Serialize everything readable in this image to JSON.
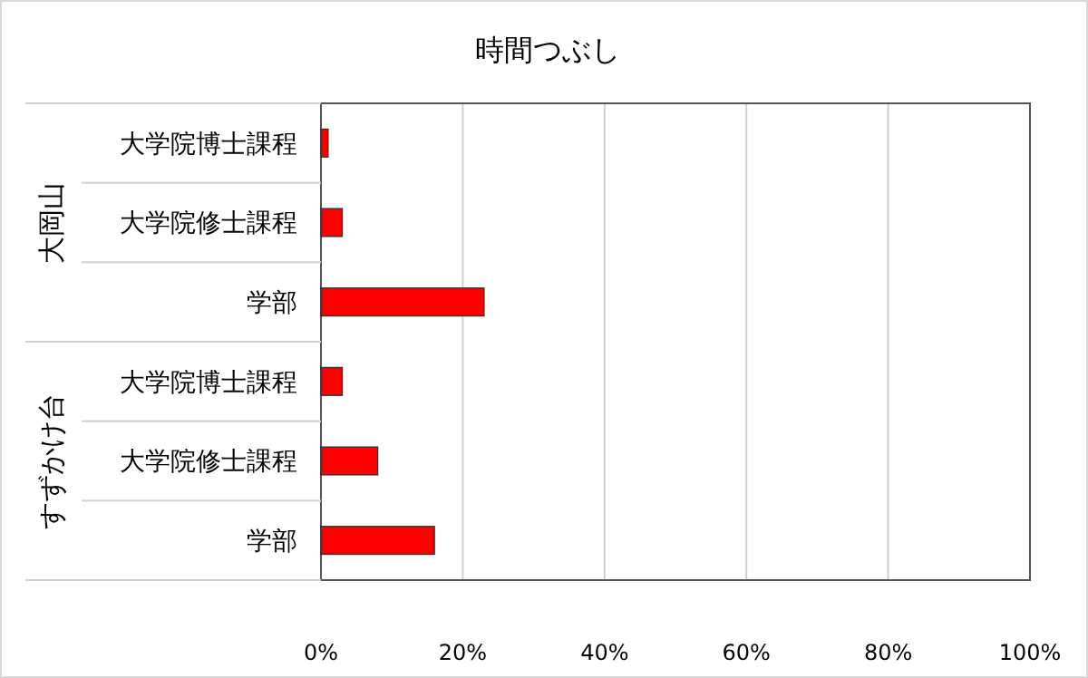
{
  "chart_data": {
    "type": "bar",
    "orientation": "horizontal",
    "title": "時間つぶし",
    "categories": [
      "大学院博士課程",
      "大学院修士課程",
      "学部",
      "大学院博士課程",
      "大学院修士課程",
      "学部"
    ],
    "values": [
      1,
      3,
      23,
      3,
      8,
      16
    ],
    "color": "#ff0000",
    "xlim": [
      0,
      100
    ],
    "xticks": [
      {
        "value": 0,
        "label": "0%"
      },
      {
        "value": 20,
        "label": "20%"
      },
      {
        "value": 40,
        "label": "40%"
      },
      {
        "value": 60,
        "label": "60%"
      },
      {
        "value": 80,
        "label": "80%"
      },
      {
        "value": 100,
        "label": "100%"
      }
    ],
    "grid": "x",
    "annotations": [
      "大岡山",
      "すずかけ台"
    ]
  }
}
